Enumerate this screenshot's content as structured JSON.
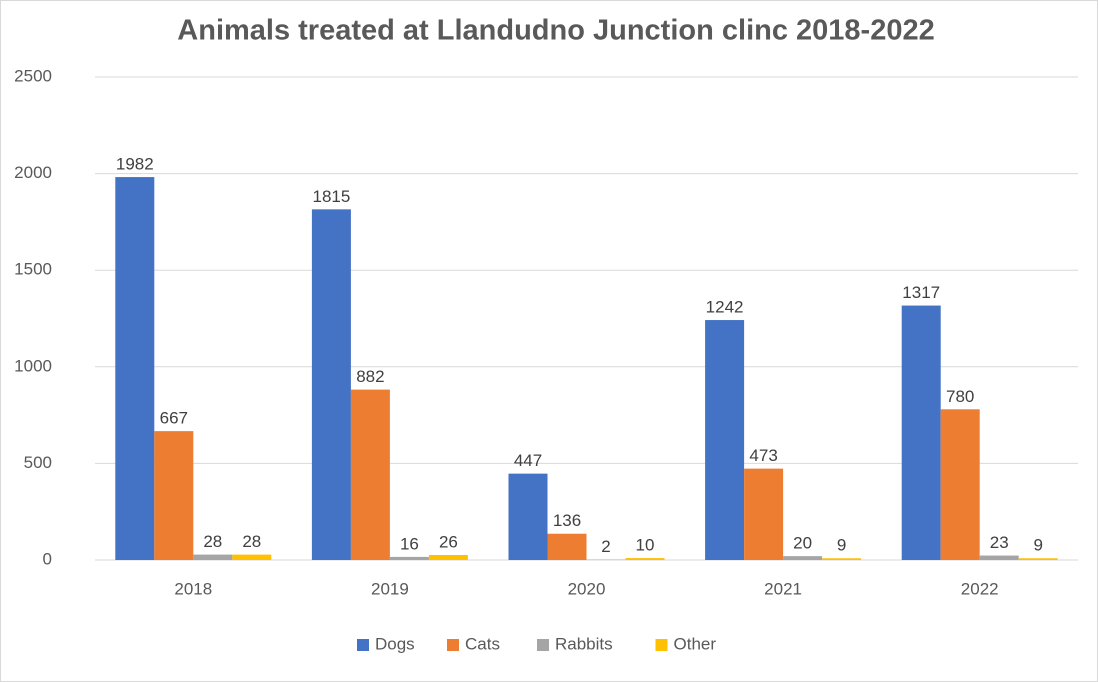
{
  "chart_data": {
    "type": "bar",
    "title": "Animals treated at Llandudno Junction clinc 2018-2022",
    "categories": [
      "2018",
      "2019",
      "2020",
      "2021",
      "2022"
    ],
    "series": [
      {
        "name": "Dogs",
        "color": "#4472c4",
        "values": [
          1982,
          1815,
          447,
          1242,
          1317
        ]
      },
      {
        "name": "Cats",
        "color": "#ed7d31",
        "values": [
          667,
          882,
          136,
          473,
          780
        ]
      },
      {
        "name": "Rabbits",
        "color": "#a5a5a5",
        "values": [
          28,
          16,
          2,
          20,
          23
        ]
      },
      {
        "name": "Other",
        "color": "#ffc000",
        "values": [
          28,
          26,
          10,
          9,
          9
        ]
      }
    ],
    "ylim": [
      0,
      2500
    ],
    "yticks": [
      0,
      500,
      1000,
      1500,
      2000,
      2500
    ],
    "grid": true,
    "legend": "bottom"
  }
}
